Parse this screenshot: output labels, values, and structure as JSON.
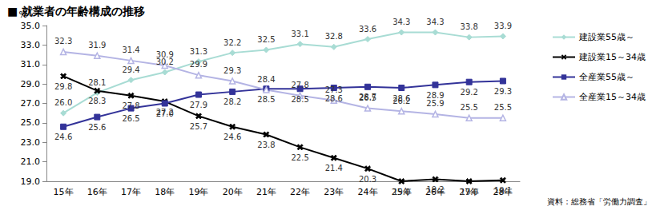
{
  "chart_data": {
    "type": "line",
    "title": "■ 就業者の年齢構成の推移",
    "y_label": "%",
    "note": "資料：総務省「労働力調査」",
    "categories": [
      "15年",
      "16年",
      "17年",
      "18年",
      "19年",
      "20年",
      "21年",
      "22年",
      "23年",
      "24年",
      "25年",
      "26年",
      "27年",
      "28年"
    ],
    "ylim": [
      19,
      35
    ],
    "yticks": [
      {
        "value": 19,
        "label": "19.0"
      },
      {
        "value": 21,
        "label": "21.0"
      },
      {
        "value": 23,
        "label": "23.0"
      },
      {
        "value": 25,
        "label": "25.0"
      },
      {
        "value": 27,
        "label": "27.0"
      },
      {
        "value": 29,
        "label": "29.0"
      },
      {
        "value": 31,
        "label": "31.0"
      },
      {
        "value": 33,
        "label": "33.0"
      },
      {
        "value": 35,
        "label": "35.0"
      }
    ],
    "grid": false,
    "legend": "right",
    "data_labels": true,
    "series": [
      {
        "name": "建設業55歳～",
        "color": "#a8dcd4",
        "marker": "diamond",
        "values": [
          26.0,
          28.1,
          29.4,
          30.2,
          31.3,
          32.2,
          32.5,
          33.1,
          32.8,
          33.6,
          34.3,
          34.3,
          33.8,
          33.9
        ],
        "value_labels": [
          "26.0",
          "28.1",
          "29.4",
          "30.2",
          "31.3",
          "32.2",
          "32.5",
          "33.1",
          "32.8",
          "33.6",
          "34.3",
          "34.3",
          "33.8",
          "33.9"
        ]
      },
      {
        "name": "建設業15～34歳",
        "color": "#000000",
        "marker": "cross",
        "values": [
          29.8,
          28.3,
          27.8,
          27.2,
          25.7,
          24.6,
          23.8,
          22.5,
          21.4,
          20.3,
          19.0,
          19.2,
          19.0,
          19.1
        ],
        "value_labels": [
          "29.8",
          "28.3",
          "27.8",
          "27.2",
          "25.7",
          "24.6",
          "23.8",
          "22.5",
          "21.4",
          "20.3",
          "19.0",
          "19.2",
          "19.0",
          "19.1"
        ]
      },
      {
        "name": "全産業55歳～",
        "color": "#333399",
        "marker": "square",
        "values": [
          24.6,
          25.6,
          26.5,
          27.0,
          27.9,
          28.2,
          28.5,
          28.5,
          28.6,
          28.7,
          28.6,
          28.9,
          29.2,
          29.3
        ],
        "value_labels": [
          "24.6",
          "25.6",
          "26.5",
          "27.0",
          "27.9",
          "28.2",
          "28.5",
          "28.5",
          "28.6",
          "28.7",
          "28.6",
          "28.9",
          "29.2",
          "29.3"
        ]
      },
      {
        "name": "全産業15～34歳",
        "color": "#b4b4e4",
        "marker": "triangle-open",
        "values": [
          32.3,
          31.9,
          31.4,
          30.9,
          29.9,
          29.3,
          28.4,
          27.8,
          27.3,
          26.5,
          26.2,
          25.9,
          25.5,
          25.5
        ],
        "value_labels": [
          "32.3",
          "31.9",
          "31.4",
          "30.9",
          "29.9",
          "29.3",
          "28.4",
          "27.8",
          "27.3",
          "26.5",
          "26.2",
          "25.9",
          "25.5",
          "25.5"
        ]
      }
    ]
  }
}
